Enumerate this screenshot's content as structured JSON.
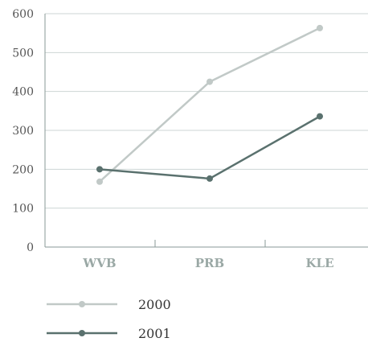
{
  "chart_data": {
    "type": "line",
    "title": "",
    "xlabel": "",
    "ylabel": "",
    "categories": [
      "WVB",
      "PRB",
      "KLE"
    ],
    "ylim": [
      0,
      600
    ],
    "yticks": [
      0,
      100,
      200,
      300,
      400,
      500,
      600
    ],
    "grid": true,
    "legend_position": "bottom-left",
    "series": [
      {
        "name": "2000",
        "values": [
          168,
          425,
          563
        ],
        "color": "#c1c9c7"
      },
      {
        "name": "2001",
        "values": [
          200,
          176,
          336
        ],
        "color": "#5a716e"
      }
    ]
  }
}
